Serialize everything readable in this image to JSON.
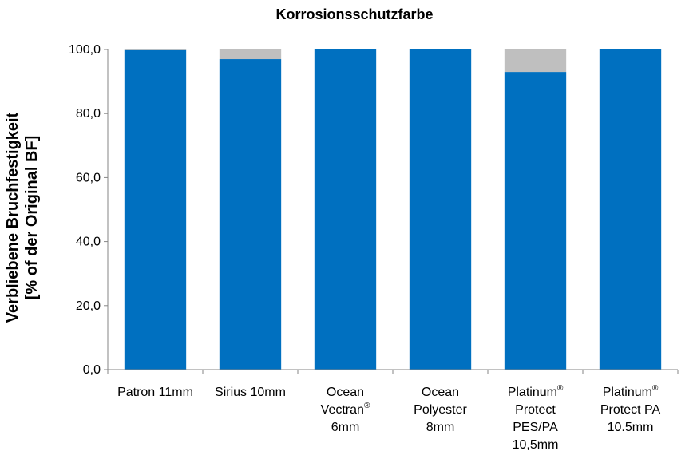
{
  "chart_data": {
    "type": "bar",
    "stacked": true,
    "title": "Korrosionsschutzfarbe",
    "ylabel_lines": [
      "Verbliebene Bruchfestigkeit",
      "[% of der Original BF]"
    ],
    "xlabel": "",
    "ylim": [
      0,
      100
    ],
    "yticks": [
      "0,0",
      "20,0",
      "40,0",
      "60,0",
      "80,0",
      "100,0"
    ],
    "ytick_values": [
      0,
      20,
      40,
      60,
      80,
      100
    ],
    "grid": false,
    "categories": [
      [
        {
          "t": "Patron 11mm"
        }
      ],
      [
        {
          "t": "Sirius 10mm"
        }
      ],
      [
        {
          "t": "Ocean"
        },
        {
          "t": "Vectran",
          "sup": "®"
        },
        {
          "t": "6mm"
        }
      ],
      [
        {
          "t": "Ocean"
        },
        {
          "t": "Polyester"
        },
        {
          "t": "8mm"
        }
      ],
      [
        {
          "t": "Platinum",
          "sup": "®"
        },
        {
          "t": "Protect"
        },
        {
          "t": "PES/PA"
        },
        {
          "t": "10,5mm"
        }
      ],
      [
        {
          "t": "Platinum",
          "sup": "®"
        },
        {
          "t": "Protect PA"
        },
        {
          "t": "10.5mm"
        }
      ]
    ],
    "series": [
      {
        "values": [
          99.8,
          97.0,
          100.0,
          100.0,
          93.0,
          100.0
        ],
        "color": "#0070C0"
      },
      {
        "values": [
          0.2,
          3.0,
          0.0,
          0.0,
          7.0,
          0.0
        ],
        "color": "#BFBFBF"
      }
    ]
  }
}
